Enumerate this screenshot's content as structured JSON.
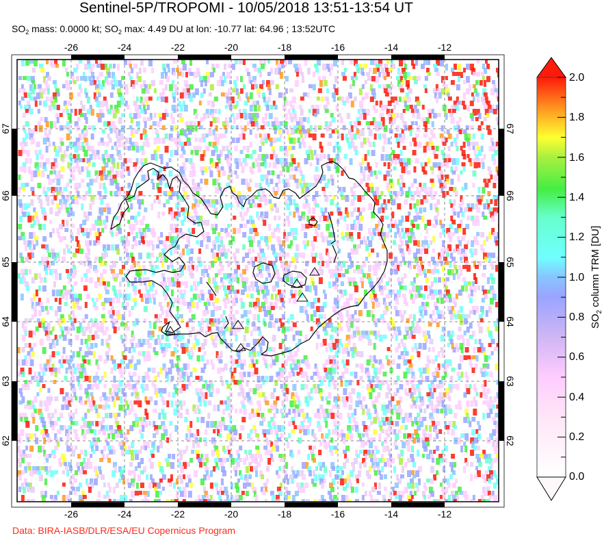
{
  "header": {
    "title": "Sentinel-5P/TROPOMI - 10/05/2018 13:51-13:54 UT",
    "subtitle": {
      "mass_prefix": "SO",
      "mass_sub": "2",
      "mass_text": " mass: 0.0000 kt; ",
      "max_prefix": "SO",
      "max_sub": "2",
      "max_text": " max: 4.49 DU at lon: -10.77 lat: 64.96 ; 13:52UTC"
    }
  },
  "map": {
    "lon_ticks": [
      "-26",
      "-24",
      "-22",
      "-20",
      "-18",
      "-16",
      "-14",
      "-12"
    ],
    "lat_ticks": [
      "67",
      "66",
      "65",
      "64",
      "63",
      "62"
    ],
    "so2_mass_kt": 0.0,
    "so2_max_du": 4.49,
    "so2_max_lon": -10.77,
    "so2_max_lat": 64.96,
    "time_utc": "13:52UTC",
    "volcano_markers": 7
  },
  "colorbar": {
    "title_prefix": "SO",
    "title_sub": "2",
    "title_text": " column TRM [DU]",
    "labels": [
      "2.0",
      "1.8",
      "1.6",
      "1.4",
      "1.2",
      "1.0",
      "0.8",
      "0.6",
      "0.4",
      "0.2",
      "0.0"
    ],
    "min": 0.0,
    "max": 2.0,
    "colors": {
      "c2_0": "#ff1a0a",
      "c1_8": "#ff9a20",
      "c1_7": "#ffff30",
      "c1_4": "#44ee44",
      "c1_0": "#70ffff",
      "c0_7": "#9aa4ff",
      "c0_4": "#ffccff",
      "c0_0": "#ffffff"
    }
  },
  "footer": {
    "credit": "Data: BIRA-IASB/DLR/ESA/EU Copernicus Program"
  }
}
